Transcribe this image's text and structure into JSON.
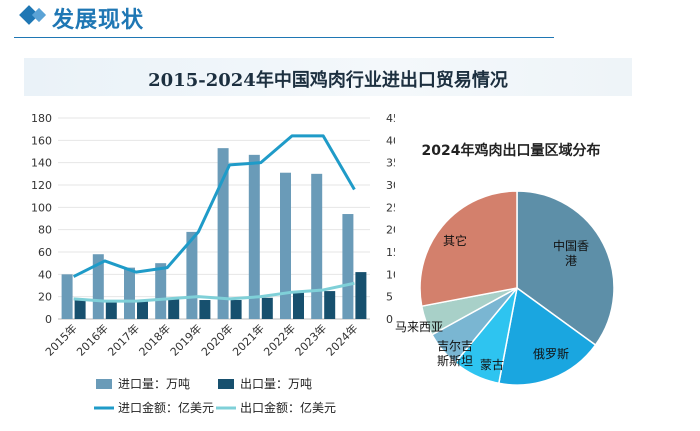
{
  "header": {
    "title": "发展现状"
  },
  "chart_title": "2015-2024年中国鸡肉行业进出口贸易情况",
  "chart_data": [
    {
      "type": "bar",
      "categories": [
        "2015年",
        "2016年",
        "2017年",
        "2018年",
        "2019年",
        "2020年",
        "2021年",
        "2022年",
        "2023年",
        "2024年"
      ],
      "series": [
        {
          "name": "进口量：万吨",
          "kind": "bar",
          "axis": "left",
          "color": "#6a9bb8",
          "values": [
            40,
            58,
            46,
            50,
            78,
            153,
            147,
            131,
            130,
            94
          ]
        },
        {
          "name": "出口量：万吨",
          "kind": "bar",
          "axis": "left",
          "color": "#17506e",
          "values": [
            18,
            17,
            17,
            18,
            17,
            17,
            19,
            24,
            25,
            42
          ]
        },
        {
          "name": "进口金额：亿美元",
          "kind": "line",
          "axis": "right",
          "color": "#1f9bc8",
          "values": [
            9.5,
            13,
            10.5,
            11.5,
            19.5,
            34.5,
            35,
            41,
            41,
            29
          ]
        },
        {
          "name": "出口金额：亿美元",
          "kind": "line",
          "axis": "right",
          "color": "#7fd0d8",
          "values": [
            4.5,
            4,
            4,
            4.5,
            5,
            4.5,
            5,
            6,
            6.5,
            8
          ]
        }
      ],
      "left_axis": {
        "min": 0,
        "max": 180,
        "ticks": [
          "0",
          "20",
          "40",
          "60",
          "80",
          "100",
          "120",
          "140",
          "160",
          "180"
        ]
      },
      "right_axis": {
        "min": 0,
        "max": 45,
        "ticks": [
          "0",
          "5",
          "10",
          "15",
          "20",
          "25",
          "30",
          "35",
          "40",
          "45"
        ]
      },
      "legend_position": "bottom"
    },
    {
      "type": "pie",
      "title": "2024年鸡肉出口量区域分布",
      "slices": [
        {
          "label": "中国香港",
          "value": 35,
          "color": "#5d8fa8"
        },
        {
          "label": "俄罗斯",
          "value": 18,
          "color": "#1aa6e0"
        },
        {
          "label": "蒙古",
          "value": 8,
          "color": "#2ec4f0"
        },
        {
          "label": "吉尔吉斯斯坦",
          "value": 6,
          "color": "#7ab6d2"
        },
        {
          "label": "马来西亚",
          "value": 5,
          "color": "#a8d0c8"
        },
        {
          "label": "其它",
          "value": 28,
          "color": "#d3806c"
        }
      ]
    }
  ]
}
